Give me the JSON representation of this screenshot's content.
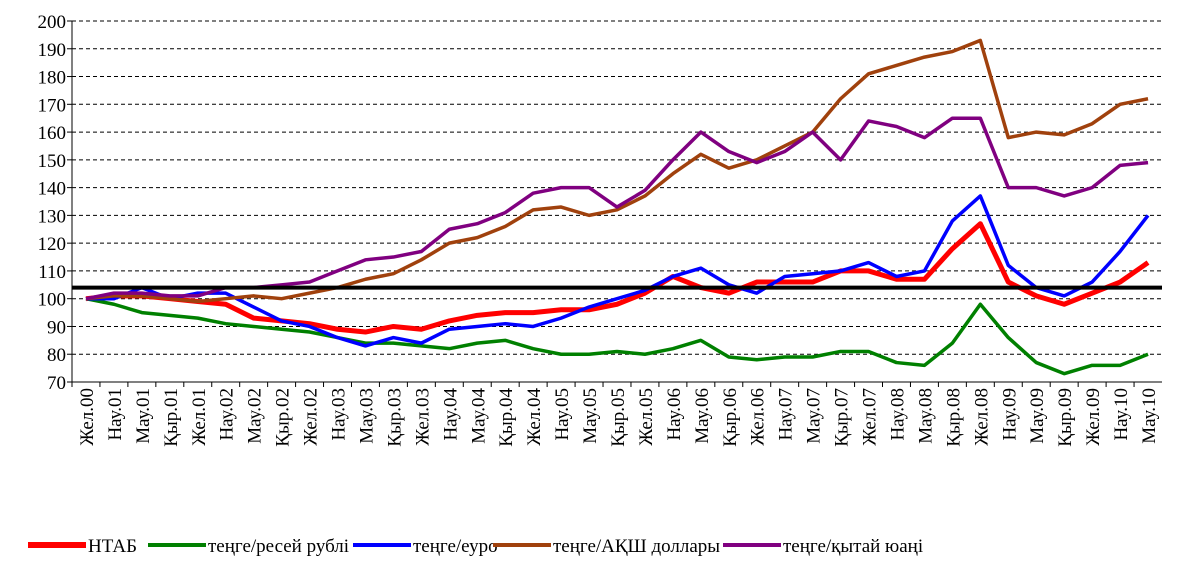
{
  "chart_data": {
    "type": "line",
    "categories": [
      "Жел.00",
      "Нау.01",
      "Мау.01",
      "Қыр.01",
      "Жел.01",
      "Нау.02",
      "Мау.02",
      "Қыр.02",
      "Жел.02",
      "Нау.03",
      "Мау.03",
      "Қыр.03",
      "Жел.03",
      "Нау.04",
      "Мау.04",
      "Қыр.04",
      "Жел.04",
      "Нау.05",
      "Мау.05",
      "Қыр.05",
      "Жел.05",
      "Нау.06",
      "Мау.06",
      "Қыр.06",
      "Жел.06",
      "Нау.07",
      "Мау.07",
      "Қыр.07",
      "Жел.07",
      "Нау.08",
      "Мау.08",
      "Қыр.08",
      "Жел.08",
      "Нау.09",
      "Мау.09",
      "Қыр.09",
      "Жел.09",
      "Нау.10",
      "Мау.10"
    ],
    "series": [
      {
        "name": "НТАБ",
        "color": "#ff0000",
        "values": [
          100,
          101,
          101,
          100,
          99,
          98,
          93,
          92,
          91,
          89,
          88,
          90,
          89,
          92,
          94,
          95,
          95,
          96,
          96,
          98,
          102,
          108,
          104,
          102,
          106,
          106,
          106,
          110,
          110,
          107,
          107,
          118,
          127,
          106,
          101,
          98,
          102,
          106,
          113
        ]
      },
      {
        "name": "теңге/ресей рублі",
        "color": "#008000",
        "values": [
          100,
          98,
          95,
          94,
          93,
          91,
          90,
          89,
          88,
          86,
          84,
          84,
          83,
          82,
          84,
          85,
          82,
          80,
          80,
          81,
          80,
          82,
          85,
          79,
          78,
          79,
          79,
          81,
          81,
          77,
          76,
          84,
          98,
          86,
          77,
          73,
          76,
          76,
          80
        ]
      },
      {
        "name": "теңге/еуро",
        "color": "#0000ff",
        "values": [
          100,
          100,
          104,
          100,
          102,
          102,
          97,
          92,
          90,
          86,
          83,
          86,
          84,
          89,
          90,
          91,
          90,
          93,
          97,
          100,
          103,
          108,
          111,
          105,
          102,
          108,
          109,
          110,
          113,
          108,
          110,
          128,
          137,
          112,
          104,
          101,
          106,
          117,
          130
        ]
      },
      {
        "name": "теңге/АҚШ доллары",
        "color": "#a0410d",
        "values": [
          100,
          101,
          101,
          100,
          99,
          100,
          101,
          100,
          102,
          104,
          107,
          109,
          114,
          120,
          122,
          126,
          132,
          133,
          130,
          132,
          137,
          145,
          152,
          147,
          150,
          155,
          160,
          172,
          181,
          184,
          187,
          189,
          193,
          158,
          160,
          159,
          163,
          170,
          172
        ]
      },
      {
        "name": "теңге/қытай юаңі",
        "color": "#800080",
        "values": [
          100,
          102,
          102,
          101,
          101,
          104,
          104,
          105,
          106,
          110,
          114,
          115,
          117,
          125,
          127,
          131,
          138,
          140,
          140,
          133,
          139,
          150,
          160,
          153,
          149,
          153,
          160,
          150,
          164,
          162,
          158,
          165,
          165,
          140,
          140,
          137,
          140,
          148,
          149
        ]
      }
    ],
    "hline": {
      "value": 104,
      "color": "#000000"
    },
    "ylim": [
      70,
      200
    ],
    "yticks": [
      70,
      80,
      90,
      100,
      110,
      120,
      130,
      140,
      150,
      160,
      170,
      180,
      190,
      200
    ],
    "grid": true,
    "legend": "bottom"
  }
}
